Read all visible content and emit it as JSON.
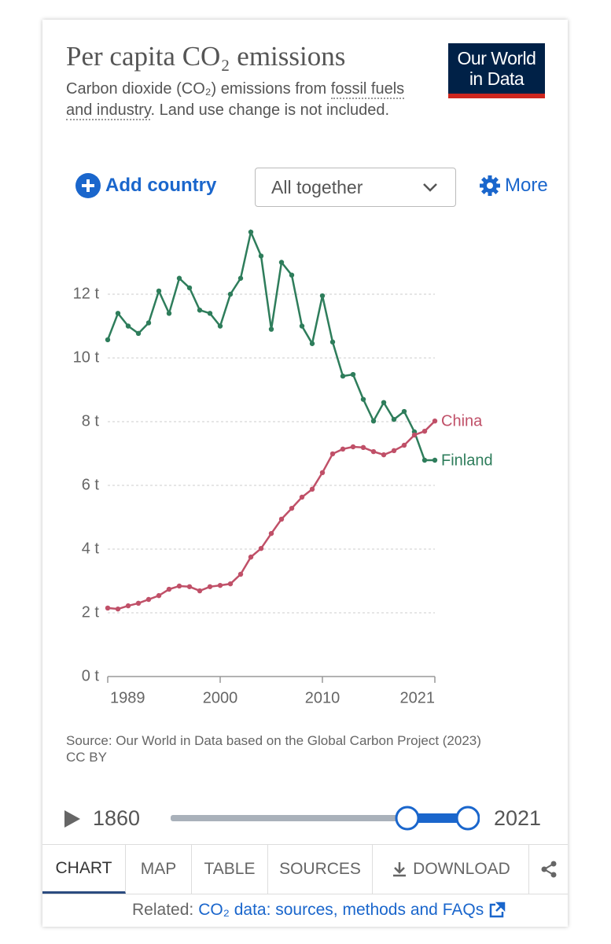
{
  "header": {
    "title": "Per capita CO₂ emissions",
    "subtitle": [
      "Carbon dioxide (CO₂) emissions from ",
      "fossil fuels and industry",
      ". Land use change is not included."
    ],
    "logo": [
      "Our World",
      "in Data"
    ]
  },
  "controls": {
    "add": "Add country",
    "mode": "All together",
    "more": "More"
  },
  "chart_data": {
    "type": "line",
    "x": [
      1989,
      1990,
      1991,
      1992,
      1993,
      1994,
      1995,
      1996,
      1997,
      1998,
      1999,
      2000,
      2001,
      2002,
      2003,
      2004,
      2005,
      2006,
      2007,
      2008,
      2009,
      2010,
      2011,
      2012,
      2013,
      2014,
      2015,
      2016,
      2017,
      2018,
      2019,
      2020,
      2021
    ],
    "series": [
      {
        "name": "Finland",
        "color": "#2e7d5b",
        "values": [
          10.57,
          11.4,
          11.0,
          10.77,
          11.1,
          12.1,
          11.4,
          12.5,
          12.2,
          11.5,
          11.4,
          11.0,
          12.0,
          12.5,
          13.95,
          13.2,
          10.9,
          13.0,
          12.6,
          11.0,
          10.45,
          11.95,
          10.5,
          9.43,
          9.48,
          8.7,
          8.02,
          8.6,
          8.07,
          8.32,
          7.68,
          6.79,
          6.79
        ]
      },
      {
        "name": "China",
        "color": "#c05068",
        "values": [
          2.15,
          2.12,
          2.22,
          2.3,
          2.42,
          2.54,
          2.74,
          2.84,
          2.82,
          2.69,
          2.82,
          2.86,
          2.91,
          3.21,
          3.75,
          4.02,
          4.49,
          4.94,
          5.28,
          5.63,
          5.88,
          6.4,
          6.99,
          7.14,
          7.21,
          7.19,
          7.06,
          6.96,
          7.09,
          7.26,
          7.58,
          7.7,
          8.02
        ]
      }
    ],
    "xlim": [
      1989,
      2021
    ],
    "xticks": [
      1989,
      2000,
      2010,
      2021
    ],
    "ylim": [
      0,
      14
    ],
    "yticks": [
      {
        "value": 0,
        "label": "0 t"
      },
      {
        "value": 2,
        "label": "2 t"
      },
      {
        "value": 4,
        "label": "4 t"
      },
      {
        "value": 6,
        "label": "6 t"
      },
      {
        "value": 8,
        "label": "8 t"
      },
      {
        "value": 10,
        "label": "10 t"
      },
      {
        "value": 12,
        "label": "12 t"
      }
    ],
    "grid": true
  },
  "source": [
    "Source: Our World in Data based on the Global Carbon Project (2023)",
    "CC BY"
  ],
  "timeline": {
    "start": 1860,
    "end": 2021
  },
  "tabs": [
    "CHART",
    "MAP",
    "TABLE",
    "SOURCES",
    "DOWNLOAD"
  ],
  "related": {
    "label": "Related:",
    "link": "CO₂ data: sources, methods and FAQs"
  }
}
